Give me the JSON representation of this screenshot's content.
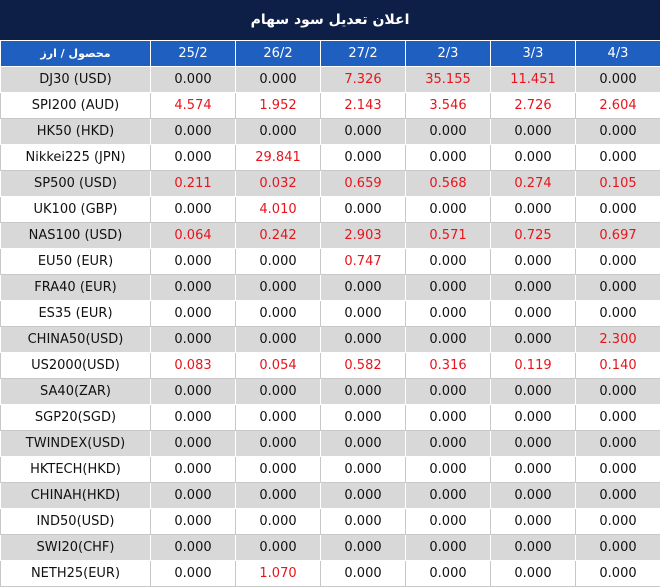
{
  "title": "اعلان تعدیل سود سهام",
  "table": {
    "header": [
      "محصول / ارز",
      "25/2",
      "26/2",
      "27/2",
      "2/3",
      "3/3",
      "4/3"
    ],
    "nonzero_color": "#e8141c",
    "rows": [
      [
        "DJ30 (USD)",
        "0.000",
        "0.000",
        "7.326",
        "35.155",
        "11.451",
        "0.000"
      ],
      [
        "SPI200 (AUD)",
        "4.574",
        "1.952",
        "2.143",
        "3.546",
        "2.726",
        "2.604"
      ],
      [
        "HK50 (HKD)",
        "0.000",
        "0.000",
        "0.000",
        "0.000",
        "0.000",
        "0.000"
      ],
      [
        "Nikkei225 (JPN)",
        "0.000",
        "29.841",
        "0.000",
        "0.000",
        "0.000",
        "0.000"
      ],
      [
        "SP500 (USD)",
        "0.211",
        "0.032",
        "0.659",
        "0.568",
        "0.274",
        "0.105"
      ],
      [
        "UK100 (GBP)",
        "0.000",
        "4.010",
        "0.000",
        "0.000",
        "0.000",
        "0.000"
      ],
      [
        "NAS100 (USD)",
        "0.064",
        "0.242",
        "2.903",
        "0.571",
        "0.725",
        "0.697"
      ],
      [
        "EU50 (EUR)",
        "0.000",
        "0.000",
        "0.747",
        "0.000",
        "0.000",
        "0.000"
      ],
      [
        "FRA40 (EUR)",
        "0.000",
        "0.000",
        "0.000",
        "0.000",
        "0.000",
        "0.000"
      ],
      [
        "ES35 (EUR)",
        "0.000",
        "0.000",
        "0.000",
        "0.000",
        "0.000",
        "0.000"
      ],
      [
        "CHINA50(USD)",
        "0.000",
        "0.000",
        "0.000",
        "0.000",
        "0.000",
        "2.300"
      ],
      [
        "US2000(USD)",
        "0.083",
        "0.054",
        "0.582",
        "0.316",
        "0.119",
        "0.140"
      ],
      [
        "SA40(ZAR)",
        "0.000",
        "0.000",
        "0.000",
        "0.000",
        "0.000",
        "0.000"
      ],
      [
        "SGP20(SGD)",
        "0.000",
        "0.000",
        "0.000",
        "0.000",
        "0.000",
        "0.000"
      ],
      [
        "TWINDEX(USD)",
        "0.000",
        "0.000",
        "0.000",
        "0.000",
        "0.000",
        "0.000"
      ],
      [
        "HKTECH(HKD)",
        "0.000",
        "0.000",
        "0.000",
        "0.000",
        "0.000",
        "0.000"
      ],
      [
        "CHINAH(HKD)",
        "0.000",
        "0.000",
        "0.000",
        "0.000",
        "0.000",
        "0.000"
      ],
      [
        "IND50(USD)",
        "0.000",
        "0.000",
        "0.000",
        "0.000",
        "0.000",
        "0.000"
      ],
      [
        "SWI20(CHF)",
        "0.000",
        "0.000",
        "0.000",
        "0.000",
        "0.000",
        "0.000"
      ],
      [
        "NETH25(EUR)",
        "0.000",
        "1.070",
        "0.000",
        "0.000",
        "0.000",
        "0.000"
      ]
    ]
  }
}
